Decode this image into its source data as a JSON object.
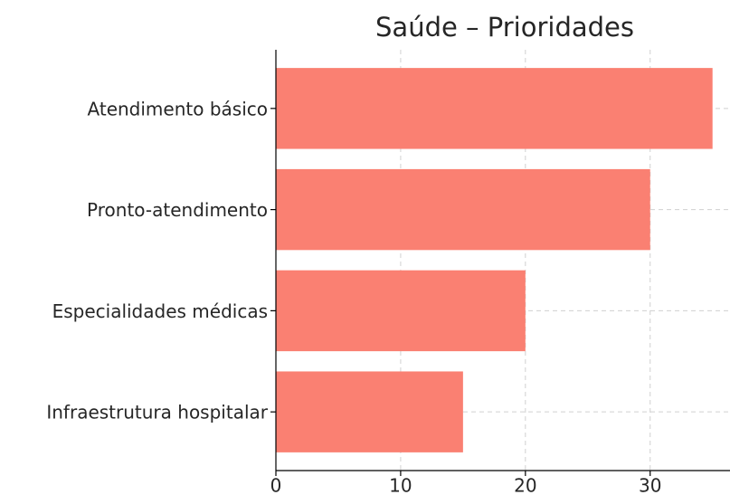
{
  "chart_data": {
    "type": "barh",
    "title": "Saúde – Prioridades",
    "categories": [
      "Atendimento básico",
      "Pronto-atendimento",
      "Especialidades médicas",
      "Infraestrutura hospitalar"
    ],
    "values": [
      35,
      30,
      20,
      15
    ],
    "color": "#fa8072",
    "xlim": [
      0,
      36.4
    ],
    "xticks": [
      0,
      10,
      20,
      30
    ],
    "grid": true
  }
}
